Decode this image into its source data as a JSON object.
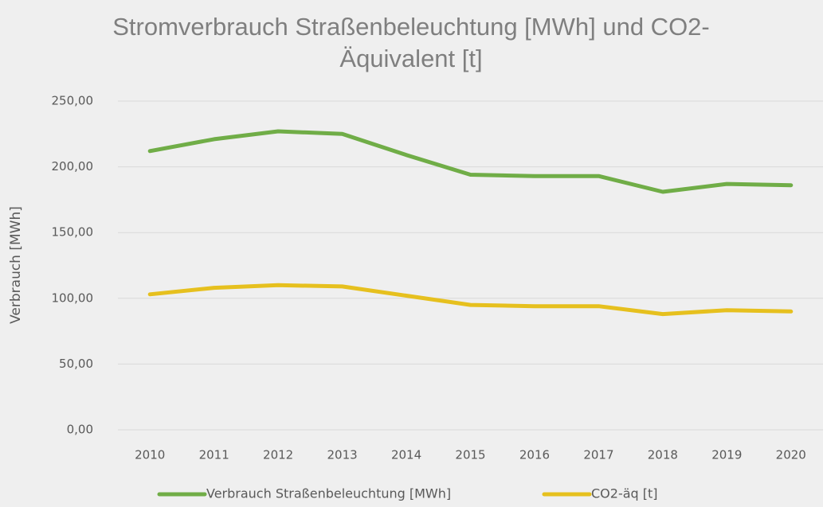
{
  "chart_data": {
    "type": "line",
    "title": "Stromverbrauch Straßenbeleuchtung [MWh] und CO2-Äquivalent [t]",
    "y_axis_label": "Verbrauch [MWh]",
    "categories": [
      "2010",
      "2011",
      "2012",
      "2013",
      "2014",
      "2015",
      "2016",
      "2017",
      "2018",
      "2019",
      "2020"
    ],
    "series": [
      {
        "name": "Verbrauch Straßenbeleuchtung [MWh]",
        "color": "#70ad47",
        "values": [
          212,
          221,
          227,
          225,
          209,
          194,
          193,
          193,
          181,
          187,
          186
        ]
      },
      {
        "name": "CO2-äq [t]",
        "color": "#e6c01e",
        "values": [
          103,
          108,
          110,
          109,
          102,
          95,
          94,
          94,
          88,
          91,
          90
        ]
      }
    ],
    "ylim": [
      0,
      250
    ],
    "yticks": [
      {
        "value": 0,
        "label": "0,00"
      },
      {
        "value": 50,
        "label": "50,00"
      },
      {
        "value": 100,
        "label": "100,00"
      },
      {
        "value": 150,
        "label": "150,00"
      },
      {
        "value": 200,
        "label": "200,00"
      },
      {
        "value": 250,
        "label": "250,00"
      }
    ],
    "grid": true,
    "legend": "bottom"
  }
}
